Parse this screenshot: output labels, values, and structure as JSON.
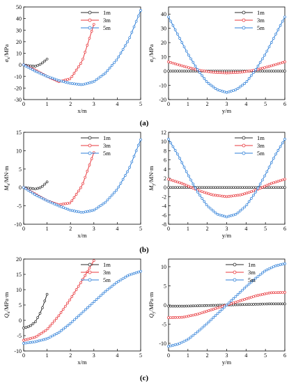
{
  "colors": {
    "1m": "#2b2b2b",
    "3m": "#e8383d",
    "5m": "#2e7fd8"
  },
  "panel_labels": [
    "(a)",
    "(b)",
    "(c)"
  ],
  "chart_data": [
    {
      "type": "line",
      "xlabel": "x/m",
      "ylabel": "σx/MPa",
      "xlim": [
        0,
        5
      ],
      "ylim": [
        -30,
        50
      ],
      "xticks": [
        0,
        1,
        2,
        3,
        4,
        5
      ],
      "yticks": [
        -30,
        -20,
        -10,
        0,
        10,
        20,
        30,
        40,
        50
      ],
      "legend": "top-left",
      "series": [
        {
          "name": "1m",
          "points": [
            [
              0,
              0
            ],
            [
              0.25,
              -0.8
            ],
            [
              0.5,
              -1.2
            ],
            [
              0.75,
              0.8
            ],
            [
              1,
              5
            ]
          ]
        },
        {
          "name": "3m",
          "points": [
            [
              0,
              0
            ],
            [
              0.5,
              -4.5
            ],
            [
              1,
              -10
            ],
            [
              1.5,
              -14.5
            ],
            [
              2,
              -12
            ],
            [
              2.5,
              3
            ],
            [
              3,
              35
            ]
          ]
        },
        {
          "name": "5m",
          "points": [
            [
              0,
              0
            ],
            [
              0.5,
              -5.5
            ],
            [
              1,
              -10
            ],
            [
              1.5,
              -13.5
            ],
            [
              2,
              -16
            ],
            [
              2.5,
              -17.2
            ],
            [
              3,
              -14.5
            ],
            [
              3.5,
              -7
            ],
            [
              4,
              5
            ],
            [
              4.5,
              22
            ],
            [
              5,
              47
            ]
          ]
        }
      ]
    },
    {
      "type": "line",
      "xlabel": "y/m",
      "ylabel": "σy/MPa",
      "xlim": [
        0,
        6
      ],
      "ylim": [
        -20,
        45
      ],
      "xticks": [
        0,
        1,
        2,
        3,
        4,
        5,
        6
      ],
      "yticks": [
        -20,
        -10,
        0,
        10,
        20,
        30,
        40
      ],
      "legend": "top-right",
      "series": [
        {
          "name": "1m",
          "points": [
            [
              0,
              0
            ],
            [
              1,
              0
            ],
            [
              2,
              0
            ],
            [
              3,
              0
            ],
            [
              4,
              0
            ],
            [
              5,
              0
            ],
            [
              6,
              0
            ]
          ]
        },
        {
          "name": "3m",
          "points": [
            [
              0,
              6.5
            ],
            [
              0.75,
              3.5
            ],
            [
              1.5,
              0.8
            ],
            [
              2.25,
              -0.8
            ],
            [
              3,
              -1.3
            ],
            [
              3.75,
              -0.8
            ],
            [
              4.5,
              0.8
            ],
            [
              5.25,
              3.5
            ],
            [
              6,
              6.5
            ]
          ]
        },
        {
          "name": "5m",
          "points": [
            [
              0,
              38
            ],
            [
              0.5,
              25
            ],
            [
              1,
              12
            ],
            [
              1.5,
              1
            ],
            [
              2,
              -8
            ],
            [
              2.5,
              -13
            ],
            [
              3,
              -15
            ],
            [
              3.5,
              -13
            ],
            [
              4,
              -8
            ],
            [
              4.5,
              1
            ],
            [
              5,
              12
            ],
            [
              5.5,
              25
            ],
            [
              6,
              38
            ]
          ]
        }
      ]
    },
    {
      "type": "line",
      "xlabel": "x/m",
      "ylabel": "Mx/MN·m",
      "xlim": [
        0,
        5
      ],
      "ylim": [
        -10,
        15
      ],
      "xticks": [
        0,
        1,
        2,
        3,
        4,
        5
      ],
      "yticks": [
        -10,
        -5,
        0,
        5,
        10,
        15
      ],
      "legend": "top-left",
      "series": [
        {
          "name": "1m",
          "points": [
            [
              0,
              0
            ],
            [
              0.25,
              -0.2
            ],
            [
              0.5,
              -0.4
            ],
            [
              0.75,
              0
            ],
            [
              1,
              1.5
            ]
          ]
        },
        {
          "name": "3m",
          "points": [
            [
              0,
              0
            ],
            [
              0.5,
              -1.8
            ],
            [
              1,
              -3.6
            ],
            [
              1.5,
              -4.7
            ],
            [
              2,
              -4.2
            ],
            [
              2.5,
              0.5
            ],
            [
              3,
              9.5
            ]
          ]
        },
        {
          "name": "5m",
          "points": [
            [
              0,
              0
            ],
            [
              0.5,
              -2
            ],
            [
              1,
              -3.6
            ],
            [
              1.5,
              -5
            ],
            [
              2,
              -6.2
            ],
            [
              2.5,
              -6.8
            ],
            [
              3,
              -6.2
            ],
            [
              3.5,
              -4
            ],
            [
              4,
              -0.5
            ],
            [
              4.5,
              5
            ],
            [
              5,
              13
            ]
          ]
        }
      ]
    },
    {
      "type": "line",
      "xlabel": "y/m",
      "ylabel": "My/MN·m",
      "xlim": [
        0,
        6
      ],
      "ylim": [
        -8,
        12
      ],
      "xticks": [
        0,
        1,
        2,
        3,
        4,
        5,
        6
      ],
      "yticks": [
        -8,
        -6,
        -4,
        -2,
        0,
        2,
        4,
        6,
        8,
        10,
        12
      ],
      "legend": "top-right",
      "series": [
        {
          "name": "1m",
          "points": [
            [
              0,
              0
            ],
            [
              1,
              0
            ],
            [
              2,
              0
            ],
            [
              3,
              0
            ],
            [
              4,
              0
            ],
            [
              5,
              0
            ],
            [
              6,
              0
            ]
          ]
        },
        {
          "name": "3m",
          "points": [
            [
              0,
              1.8
            ],
            [
              0.75,
              0.8
            ],
            [
              1.5,
              -0.6
            ],
            [
              2.25,
              -1.6
            ],
            [
              3,
              -2
            ],
            [
              3.75,
              -1.6
            ],
            [
              4.5,
              -0.6
            ],
            [
              5.25,
              0.8
            ],
            [
              6,
              1.8
            ]
          ]
        },
        {
          "name": "5m",
          "points": [
            [
              0,
              10.5
            ],
            [
              0.5,
              7
            ],
            [
              1,
              2.8
            ],
            [
              1.5,
              -1
            ],
            [
              2,
              -4
            ],
            [
              2.5,
              -5.8
            ],
            [
              3,
              -6.4
            ],
            [
              3.5,
              -5.8
            ],
            [
              4,
              -4
            ],
            [
              4.5,
              -1
            ],
            [
              5,
              2.8
            ],
            [
              5.5,
              7
            ],
            [
              6,
              10.5
            ]
          ]
        }
      ]
    },
    {
      "type": "line",
      "xlabel": "x/m",
      "ylabel": "Qx/MPa·m",
      "xlim": [
        0,
        5
      ],
      "ylim": [
        -10,
        20
      ],
      "xticks": [
        0,
        1,
        2,
        3,
        4,
        5
      ],
      "yticks": [
        -10,
        -5,
        0,
        5,
        10,
        15,
        20
      ],
      "legend": "top-left",
      "series": [
        {
          "name": "1m",
          "points": [
            [
              0,
              -2.5
            ],
            [
              0.25,
              -2
            ],
            [
              0.5,
              -0.5
            ],
            [
              0.75,
              3
            ],
            [
              1,
              8.5
            ]
          ]
        },
        {
          "name": "3m",
          "points": [
            [
              0,
              -6.5
            ],
            [
              0.5,
              -5.5
            ],
            [
              1,
              -3
            ],
            [
              1.5,
              1.5
            ],
            [
              2,
              7
            ],
            [
              2.5,
              13
            ],
            [
              3,
              19.5
            ]
          ]
        },
        {
          "name": "5m",
          "points": [
            [
              0,
              -7.5
            ],
            [
              0.5,
              -7
            ],
            [
              1,
              -6
            ],
            [
              1.5,
              -4
            ],
            [
              2,
              -1
            ],
            [
              2.5,
              2.5
            ],
            [
              3,
              6
            ],
            [
              3.5,
              9.5
            ],
            [
              4,
              12.5
            ],
            [
              4.5,
              14.8
            ],
            [
              5,
              16
            ]
          ]
        }
      ]
    },
    {
      "type": "line",
      "xlabel": "y/m",
      "ylabel": "Qy/MPa·m",
      "xlim": [
        0,
        6
      ],
      "ylim": [
        -12,
        12
      ],
      "xticks": [
        0,
        1,
        2,
        3,
        4,
        5,
        6
      ],
      "yticks": [
        -10,
        -5,
        0,
        5,
        10
      ],
      "legend": "top-left",
      "series": [
        {
          "name": "1m",
          "points": [
            [
              0,
              -0.3
            ],
            [
              0.75,
              -0.3
            ],
            [
              1.5,
              -0.2
            ],
            [
              2.25,
              -0.1
            ],
            [
              3,
              0
            ],
            [
              3.75,
              0.1
            ],
            [
              4.5,
              0.2
            ],
            [
              5.25,
              0.3
            ],
            [
              6,
              0.3
            ]
          ]
        },
        {
          "name": "3m",
          "points": [
            [
              0,
              -3.3
            ],
            [
              0.75,
              -3.2
            ],
            [
              1.5,
              -2.4
            ],
            [
              2.25,
              -1.2
            ],
            [
              3,
              0
            ],
            [
              3.75,
              1.2
            ],
            [
              4.5,
              2.4
            ],
            [
              5.25,
              3.2
            ],
            [
              6,
              3.3
            ]
          ]
        },
        {
          "name": "5m",
          "points": [
            [
              0,
              -10.8
            ],
            [
              0.5,
              -10.2
            ],
            [
              1,
              -9
            ],
            [
              1.5,
              -7
            ],
            [
              2,
              -4.8
            ],
            [
              2.5,
              -2.4
            ],
            [
              3,
              0
            ],
            [
              3.5,
              2.4
            ],
            [
              4,
              4.8
            ],
            [
              4.5,
              7
            ],
            [
              5,
              9
            ],
            [
              5.5,
              10.2
            ],
            [
              6,
              10.8
            ]
          ]
        }
      ]
    }
  ]
}
